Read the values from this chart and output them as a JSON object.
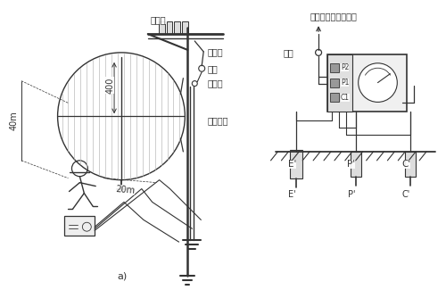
{
  "title": "",
  "bg_color": "#ffffff",
  "fig_width": 5.0,
  "fig_height": 3.25,
  "dpi": 100,
  "labels": {
    "bianyaqi": "变压器",
    "jiedixian": "接地线",
    "duankai1": "断开",
    "lianjiechu": "连接处",
    "jiedganxian": "接地干线",
    "40m": "40m",
    "20m": "20m",
    "a_label": "a)",
    "zbhd": "至被保护的电气设备",
    "duankai2": "断开",
    "E_label": "E'",
    "P_label": "P'",
    "C_label": "C'",
    "400": "400"
  },
  "line_color": "#333333",
  "hatch_color": "#555555",
  "ground_color": "#888888"
}
